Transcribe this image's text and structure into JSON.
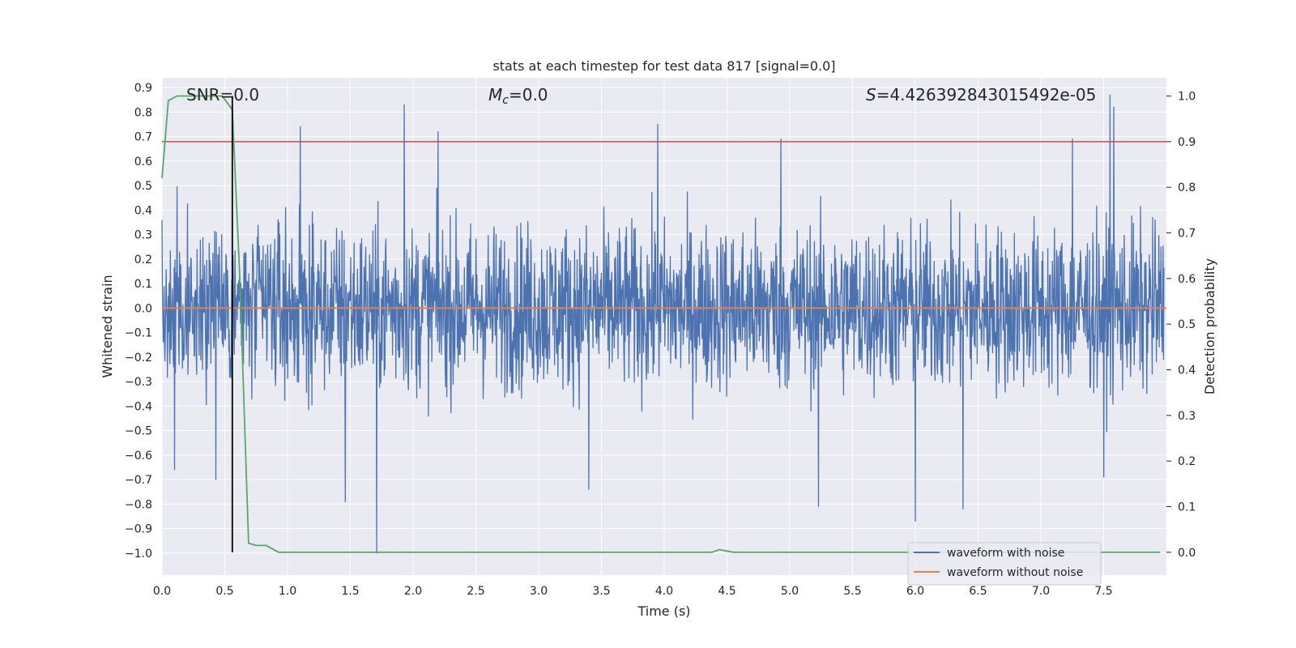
{
  "chart_data": {
    "type": "line",
    "title": "stats at each timestep for test data 817 [signal=0.0]",
    "xlabel": "Time (s)",
    "ylabel": "Whitened strain",
    "y2label": "Detection probability",
    "xlim": [
      0.0,
      8.0
    ],
    "ylim": [
      -1.09,
      0.94
    ],
    "y2lim": [
      -0.05,
      1.04
    ],
    "xticks": [
      "0.0",
      "0.5",
      "1.0",
      "1.5",
      "2.0",
      "2.5",
      "3.0",
      "3.5",
      "4.0",
      "4.5",
      "5.0",
      "5.5",
      "6.0",
      "6.5",
      "7.0",
      "7.5"
    ],
    "yticks": [
      "0.9",
      "0.8",
      "0.7",
      "0.6",
      "0.5",
      "0.4",
      "0.3",
      "0.2",
      "0.1",
      "0.0",
      "−0.1",
      "−0.2",
      "−0.3",
      "−0.4",
      "−0.5",
      "−0.6",
      "−0.7",
      "−0.8",
      "−0.9",
      "−1.0"
    ],
    "y2ticks": [
      "1.0",
      "0.9",
      "0.8",
      "0.7",
      "0.6",
      "0.5",
      "0.4",
      "0.3",
      "0.2",
      "0.1",
      "0.0"
    ],
    "annotations": {
      "snr": "SNR=0.0",
      "mc_symbol": "M",
      "mc_sub": "c",
      "mc_value": "=0.0",
      "s_symbol": "S",
      "s_value": "=4.426392843015492e-05"
    },
    "grid": true,
    "legend_position": "lower right",
    "series": [
      {
        "name": "waveform with noise",
        "color": "#4c72b0",
        "description": "noisy whitened strain, roughly +/-0.45 envelope",
        "notable_peaks": [
          {
            "x": 1.93,
            "y": 0.83
          },
          {
            "x": 2.2,
            "y": 0.72
          },
          {
            "x": 1.1,
            "y": 0.74
          },
          {
            "x": 3.95,
            "y": 0.75
          },
          {
            "x": 7.55,
            "y": 0.87
          },
          {
            "x": 7.58,
            "y": 0.82
          },
          {
            "x": 4.93,
            "y": 0.69
          },
          {
            "x": 7.25,
            "y": 0.69
          }
        ],
        "notable_troughs": [
          {
            "x": 1.71,
            "y": -1.0
          },
          {
            "x": 1.46,
            "y": -0.79
          },
          {
            "x": 6.0,
            "y": -0.87
          },
          {
            "x": 6.38,
            "y": -0.82
          },
          {
            "x": 5.23,
            "y": -0.81
          },
          {
            "x": 0.1,
            "y": -0.66
          },
          {
            "x": 0.43,
            "y": -0.7
          },
          {
            "x": 3.4,
            "y": -0.74
          },
          {
            "x": 7.5,
            "y": -0.69
          }
        ]
      },
      {
        "name": "waveform without noise",
        "color": "#dd8452",
        "y_constant": 0.0
      },
      {
        "name": "detection probability",
        "color": "#55a868",
        "axis": "right",
        "points": [
          [
            0.0,
            0.82
          ],
          [
            0.05,
            0.99
          ],
          [
            0.12,
            1.0
          ],
          [
            0.48,
            1.0
          ],
          [
            0.56,
            0.97
          ],
          [
            0.62,
            0.6
          ],
          [
            0.69,
            0.02
          ],
          [
            0.75,
            0.015
          ],
          [
            0.83,
            0.015
          ],
          [
            0.93,
            0.0
          ],
          [
            4.38,
            0.0
          ],
          [
            4.44,
            0.006
          ],
          [
            4.55,
            0.0
          ],
          [
            7.95,
            0.0
          ]
        ]
      }
    ],
    "threshold_line": {
      "y": 0.9,
      "axis": "right",
      "color": "#c44e52"
    },
    "marker_line": {
      "x": 0.56,
      "color": "#000000"
    }
  }
}
